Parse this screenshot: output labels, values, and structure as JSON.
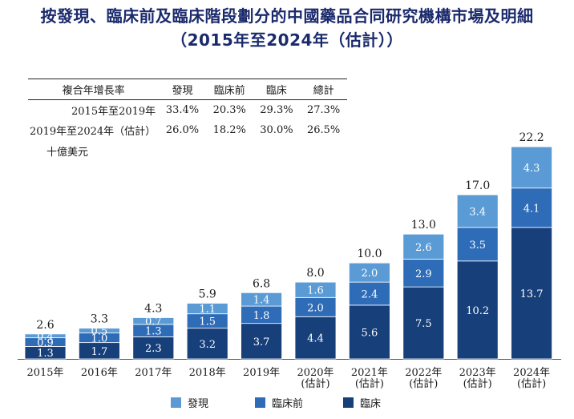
{
  "title_line1": "按發現、臨床前及臨床階段劃分的中國藥品合同研究機構市場及明細",
  "title_line2": "（2015年至2024年（估計））",
  "cagr_table": {
    "headers": [
      "複合年增長率",
      "發現",
      "臨床前",
      "臨床",
      "總計"
    ],
    "rows": [
      {
        "label": "2015年至2019年",
        "values": [
          "33.4%",
          "20.3%",
          "29.3%",
          "27.3%"
        ]
      },
      {
        "label": "2019年至2024年（估計）",
        "values": [
          "26.0%",
          "18.2%",
          "30.0%",
          "26.5%"
        ]
      }
    ]
  },
  "unit_label": "十億美元",
  "colors": {
    "discovery": "#5b9bd5",
    "preclinical": "#2e6cb8",
    "clinical": "#173f7a"
  },
  "chart_data": {
    "type": "bar",
    "stacked": true,
    "categories": [
      [
        "2015年"
      ],
      [
        "2016年"
      ],
      [
        "2017年"
      ],
      [
        "2018年"
      ],
      [
        "2019年"
      ],
      [
        "2020年",
        "(估計)"
      ],
      [
        "2021年",
        "(估計)"
      ],
      [
        "2022年",
        "(估計)"
      ],
      [
        "2023年",
        "(估計)"
      ],
      [
        "2024年",
        "(估計)"
      ]
    ],
    "series": [
      {
        "name": "臨床",
        "values": [
          1.3,
          1.7,
          2.3,
          3.2,
          3.7,
          4.4,
          5.6,
          7.5,
          10.2,
          13.7
        ]
      },
      {
        "name": "臨床前",
        "values": [
          0.9,
          1.0,
          1.3,
          1.5,
          1.8,
          2.0,
          2.4,
          2.9,
          3.5,
          4.1
        ]
      },
      {
        "name": "發現",
        "values": [
          0.4,
          0.5,
          0.7,
          1.1,
          1.4,
          1.6,
          2.0,
          2.6,
          3.4,
          4.3
        ]
      }
    ],
    "totals": [
      2.6,
      3.3,
      4.3,
      5.9,
      6.8,
      8.0,
      10.0,
      13.0,
      17.0,
      22.2
    ],
    "ylim": [
      0,
      22.2
    ],
    "grid": false,
    "legend_position": "bottom",
    "legend": [
      "發現",
      "臨床前",
      "臨床"
    ]
  }
}
